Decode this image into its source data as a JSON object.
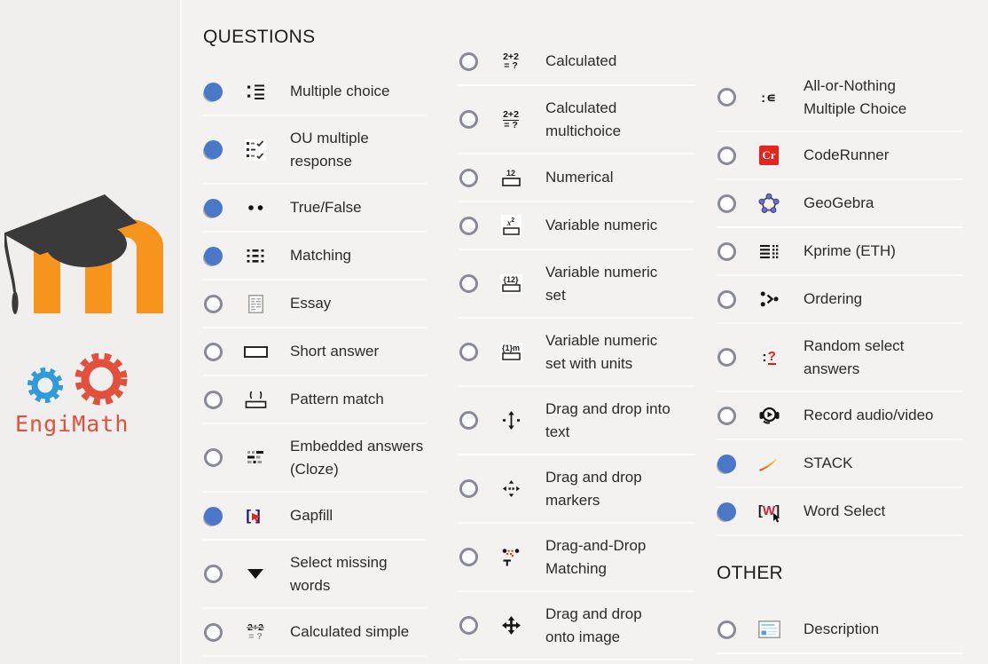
{
  "branding": {
    "engimath_text": "EngiMath",
    "moodle_logo": "moodle-m-with-graduation-cap",
    "engimath_logo": "blue-and-red-gears"
  },
  "sections": {
    "questions": "QUESTIONS",
    "other": "OTHER"
  },
  "colors": {
    "selected_radio_blue": "#4a77c8",
    "radio_ring_gray": "#8a8a96",
    "moodle_orange": "#f7941d",
    "cap_dark": "#3a3a3a",
    "engimath_red": "#e2503c",
    "engimath_blue": "#2f9bdb",
    "coderunner_red": "#e8231d",
    "gapfill_navy": "#1b1b5c",
    "accent_red": "#d21f1f",
    "geogebra_dot_blue": "#6b70c8",
    "description_blue": "#5b9bd5",
    "stack_gradient": [
      "#e2391b",
      "#ffd23f"
    ],
    "background": "#f3f2f1",
    "row_divider": "#fbfbfa",
    "label_text": "#2b2b2b"
  },
  "lists": [
    [
      {
        "label": "Multiple choice",
        "lines": [
          "Multiple choice"
        ],
        "icon": "multiple-choice",
        "selected": true
      },
      {
        "label": "OU multiple response",
        "lines": [
          "OU multiple",
          "response"
        ],
        "icon": "ou-multiple-response",
        "selected": true
      },
      {
        "label": "True/False",
        "lines": [
          "True/False"
        ],
        "icon": "true-false",
        "selected": true
      },
      {
        "label": "Matching",
        "lines": [
          "Matching"
        ],
        "icon": "matching",
        "selected": true
      },
      {
        "label": "Essay",
        "lines": [
          "Essay"
        ],
        "icon": "essay",
        "selected": false
      },
      {
        "label": "Short answer",
        "lines": [
          "Short answer"
        ],
        "icon": "short-answer",
        "selected": false
      },
      {
        "label": "Pattern match",
        "lines": [
          "Pattern match"
        ],
        "icon": "pattern-match",
        "selected": false
      },
      {
        "label": "Embedded answers (Cloze)",
        "lines": [
          "Embedded answers",
          "(Cloze)"
        ],
        "icon": "embedded-answers-cloze",
        "selected": false
      },
      {
        "label": "Gapfill",
        "lines": [
          "Gapfill"
        ],
        "icon": "gapfill",
        "selected": true
      },
      {
        "label": "Select missing words",
        "lines": [
          "Select missing",
          "words"
        ],
        "icon": "select-missing-words",
        "selected": false
      },
      {
        "label": "Calculated simple",
        "lines": [
          "Calculated simple"
        ],
        "icon": "calculated-simple",
        "selected": false
      }
    ],
    [
      {
        "label": "Calculated",
        "lines": [
          "Calculated"
        ],
        "icon": "calculated",
        "selected": false
      },
      {
        "label": "Calculated multichoice",
        "lines": [
          "Calculated",
          "multichoice"
        ],
        "icon": "calculated-multichoice",
        "selected": false
      },
      {
        "label": "Numerical",
        "lines": [
          "Numerical"
        ],
        "icon": "numerical",
        "selected": false
      },
      {
        "label": "Variable numeric",
        "lines": [
          "Variable numeric"
        ],
        "icon": "variable-numeric",
        "selected": false
      },
      {
        "label": "Variable numeric set",
        "lines": [
          "Variable numeric",
          "set"
        ],
        "icon": "variable-numeric-set",
        "selected": false
      },
      {
        "label": "Variable numeric set with units",
        "lines": [
          "Variable numeric",
          "set with units"
        ],
        "icon": "variable-numeric-set-with-units",
        "selected": false
      },
      {
        "label": "Drag and drop into text",
        "lines": [
          "Drag and drop into",
          "text"
        ],
        "icon": "drag-and-drop-into-text",
        "selected": false
      },
      {
        "label": "Drag and drop markers",
        "lines": [
          "Drag and drop",
          "markers"
        ],
        "icon": "drag-and-drop-markers",
        "selected": false
      },
      {
        "label": "Drag-and-Drop Matching",
        "lines": [
          "Drag-and-Drop",
          "Matching"
        ],
        "icon": "drag-and-drop-matching",
        "selected": false
      },
      {
        "label": "Drag and drop onto image",
        "lines": [
          "Drag and drop",
          "onto image"
        ],
        "icon": "drag-and-drop-onto-image",
        "selected": false
      }
    ],
    [
      {
        "label": "All-or-Nothing Multiple Choice",
        "lines": [
          "All-or-Nothing",
          "Multiple Choice"
        ],
        "icon": "all-or-nothing-multiple-choice",
        "selected": false
      },
      {
        "label": "CodeRunner",
        "lines": [
          "CodeRunner"
        ],
        "icon": "coderunner",
        "selected": false
      },
      {
        "label": "GeoGebra",
        "lines": [
          "GeoGebra"
        ],
        "icon": "geogebra",
        "selected": false
      },
      {
        "label": "Kprime (ETH)",
        "lines": [
          "Kprime (ETH)"
        ],
        "icon": "kprime-eth",
        "selected": false
      },
      {
        "label": "Ordering",
        "lines": [
          "Ordering"
        ],
        "icon": "ordering",
        "selected": false
      },
      {
        "label": "Random select answers",
        "lines": [
          "Random select",
          "answers"
        ],
        "icon": "random-select-answers",
        "selected": false
      },
      {
        "label": "Record audio/video",
        "lines": [
          "Record audio/video"
        ],
        "icon": "record-audio-video",
        "selected": false
      },
      {
        "label": "STACK",
        "lines": [
          "STACK"
        ],
        "icon": "stack",
        "selected": true
      },
      {
        "label": "Word Select",
        "lines": [
          "Word Select"
        ],
        "icon": "word-select",
        "selected": true
      }
    ],
    [
      {
        "label": "Description",
        "lines": [
          "Description"
        ],
        "icon": "description",
        "selected": false
      }
    ]
  ]
}
